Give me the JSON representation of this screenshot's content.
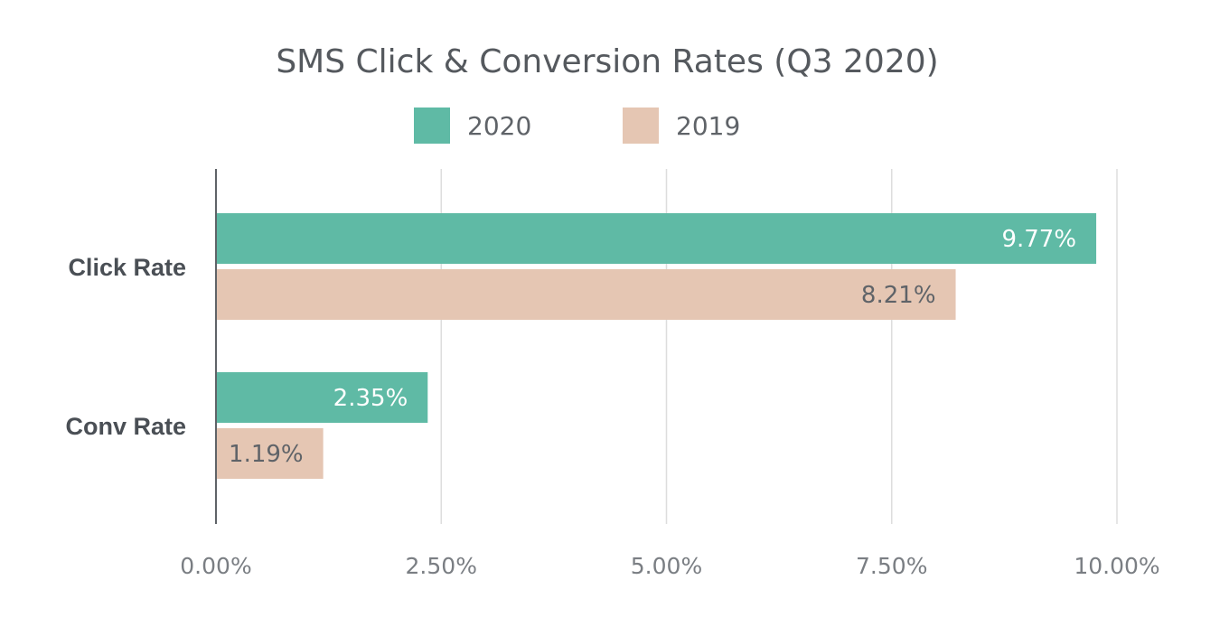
{
  "chart_data": {
    "type": "bar",
    "orientation": "horizontal",
    "title": "SMS Click & Conversion Rates (Q3 2020)",
    "categories": [
      "Click Rate",
      "Conv Rate"
    ],
    "series": [
      {
        "name": "2020",
        "color": "#5fbaa5",
        "label_color": "#ffffff",
        "values": [
          9.77,
          2.35
        ],
        "labels": [
          "9.77%",
          "2.35%"
        ]
      },
      {
        "name": "2019",
        "color": "#e5c6b3",
        "label_color": "#5f6368",
        "values": [
          8.21,
          1.19
        ],
        "labels": [
          "8.21%",
          "1.19%"
        ]
      }
    ],
    "xlim": [
      0,
      10
    ],
    "xticks": [
      0,
      2.5,
      5,
      7.5,
      10
    ],
    "xtick_labels": [
      "0.00%",
      "2.50%",
      "5.00%",
      "7.50%",
      "10.00%"
    ],
    "grid": true,
    "legend_position": "top-center"
  }
}
